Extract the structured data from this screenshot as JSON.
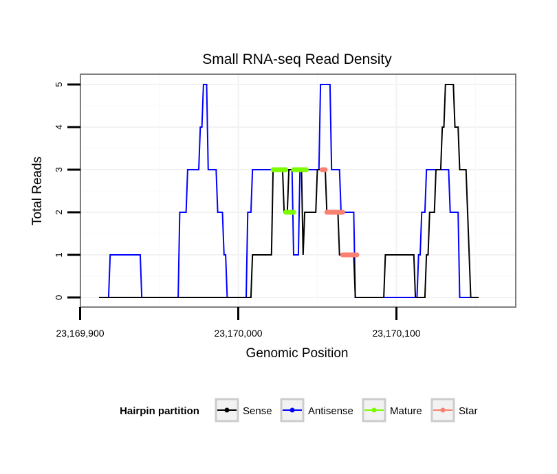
{
  "chart_data": {
    "type": "line",
    "title": "Small RNA-seq Read Density",
    "xlabel": "Genomic Position",
    "ylabel": "Total Reads",
    "xlim": [
      23169900,
      23170175
    ],
    "ylim": [
      -0.2,
      5.25
    ],
    "x_ticks": [
      23169900,
      23170000,
      23170100
    ],
    "x_tick_labels": [
      "23,169,900",
      "23,170,000",
      "23,170,100"
    ],
    "y_ticks": [
      0,
      1,
      2,
      3,
      4,
      5
    ],
    "y_tick_labels": [
      "0",
      "1",
      "2",
      "3",
      "4",
      "5"
    ],
    "grid": true,
    "legend": {
      "title": "Hairpin partition",
      "placement": "bottom",
      "entries": [
        {
          "label": "Sense",
          "color": "#000000"
        },
        {
          "label": "Antisense",
          "color": "#0000ff"
        },
        {
          "label": "Mature",
          "color": "#7cfc00"
        },
        {
          "label": "Star",
          "color": "#fa8072"
        }
      ]
    },
    "series": [
      {
        "name": "Antisense",
        "color": "#0000ff",
        "points": [
          [
            23169912,
            0
          ],
          [
            23169918,
            0
          ],
          [
            23169919,
            1
          ],
          [
            23169938,
            1
          ],
          [
            23169939,
            0
          ],
          [
            23169962,
            0
          ],
          [
            23169963,
            2
          ],
          [
            23169967,
            2
          ],
          [
            23169968,
            3
          ],
          [
            23169975,
            3
          ],
          [
            23169976,
            4
          ],
          [
            23169977,
            4
          ],
          [
            23169978,
            5
          ],
          [
            23169980,
            5
          ],
          [
            23169981,
            3
          ],
          [
            23169986,
            3
          ],
          [
            23169987,
            2
          ],
          [
            23169990,
            2
          ],
          [
            23169991,
            1
          ],
          [
            23169992,
            1
          ],
          [
            23169993,
            0
          ],
          [
            23170005,
            0
          ],
          [
            23170006,
            2
          ],
          [
            23170008,
            2
          ],
          [
            23170009,
            3
          ],
          [
            23170034,
            3
          ],
          [
            23170035,
            1
          ],
          [
            23170038,
            1
          ],
          [
            23170039,
            3
          ],
          [
            23170051,
            3
          ],
          [
            23170052,
            5
          ],
          [
            23170058,
            5
          ],
          [
            23170059,
            3
          ],
          [
            23170064,
            3
          ],
          [
            23170065,
            2
          ],
          [
            23170073,
            2
          ],
          [
            23170074,
            0
          ],
          [
            23170113,
            0
          ],
          [
            23170114,
            1
          ],
          [
            23170115,
            1
          ],
          [
            23170116,
            2
          ],
          [
            23170118,
            2
          ],
          [
            23170119,
            3
          ],
          [
            23170133,
            3
          ],
          [
            23170134,
            2
          ],
          [
            23170139,
            2
          ],
          [
            23170140,
            0
          ],
          [
            23170151,
            0
          ]
        ]
      },
      {
        "name": "Sense",
        "color": "#000000",
        "points": [
          [
            23169912,
            0
          ],
          [
            23170008,
            0
          ],
          [
            23170009,
            1
          ],
          [
            23170021,
            1
          ],
          [
            23170022,
            3
          ],
          [
            23170028,
            3
          ],
          [
            23170029,
            2
          ],
          [
            23170031,
            2
          ],
          [
            23170032,
            3
          ],
          [
            23170040,
            3
          ],
          [
            23170041,
            1
          ],
          [
            23170042,
            2
          ],
          [
            23170049,
            2
          ],
          [
            23170050,
            3
          ],
          [
            23170055,
            3
          ],
          [
            23170056,
            2
          ],
          [
            23170063,
            2
          ],
          [
            23170064,
            1
          ],
          [
            23170073,
            1
          ],
          [
            23170074,
            0
          ],
          [
            23170092,
            0
          ],
          [
            23170093,
            1
          ],
          [
            23170111,
            1
          ],
          [
            23170112,
            0
          ],
          [
            23170118,
            0
          ],
          [
            23170119,
            1
          ],
          [
            23170120,
            1
          ],
          [
            23170121,
            2
          ],
          [
            23170124,
            2
          ],
          [
            23170125,
            3
          ],
          [
            23170128,
            3
          ],
          [
            23170129,
            4
          ],
          [
            23170130,
            4
          ],
          [
            23170131,
            5
          ],
          [
            23170136,
            5
          ],
          [
            23170137,
            4
          ],
          [
            23170139,
            4
          ],
          [
            23170140,
            3
          ],
          [
            23170144,
            3
          ],
          [
            23170145,
            2
          ],
          [
            23170146,
            1
          ],
          [
            23170147,
            0
          ],
          [
            23170152,
            0
          ]
        ]
      },
      {
        "name": "Mature",
        "color": "#7cfc00",
        "segments": [
          [
            23170022,
            23170030,
            3
          ],
          [
            23170030,
            23170035,
            2
          ],
          [
            23170035,
            23170043,
            3
          ]
        ]
      },
      {
        "name": "Star",
        "color": "#fa8072",
        "segments": [
          [
            23170053,
            23170055,
            3
          ],
          [
            23170056,
            23170066,
            2
          ],
          [
            23170066,
            23170075,
            1
          ]
        ]
      }
    ]
  }
}
